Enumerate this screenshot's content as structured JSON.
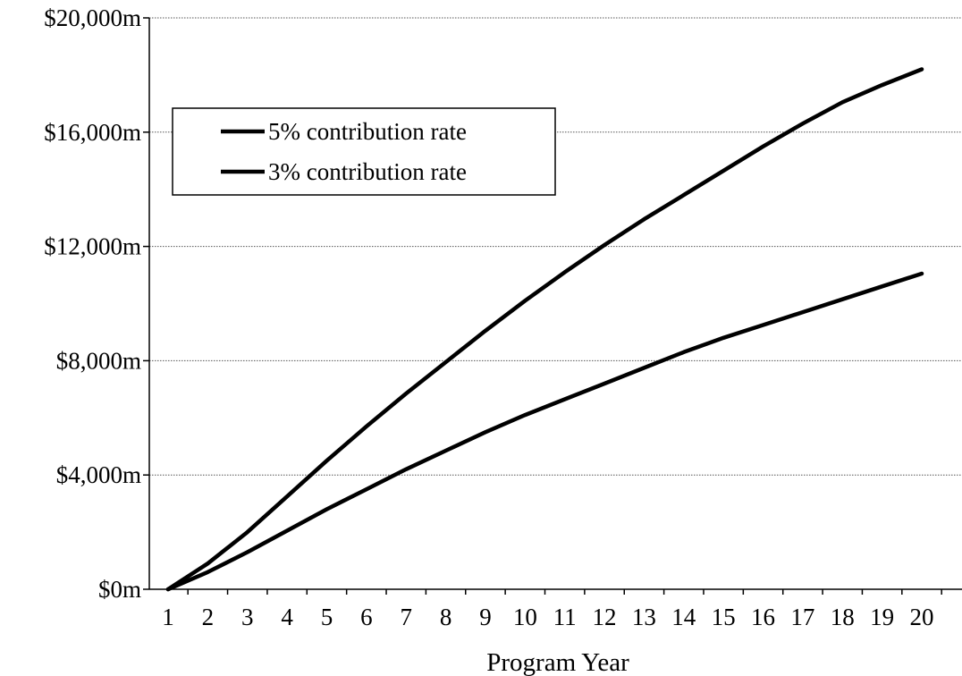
{
  "chart_data": {
    "type": "line",
    "title": "",
    "xlabel": "Program Year",
    "ylabel": "",
    "x": [
      1,
      2,
      3,
      4,
      5,
      6,
      7,
      8,
      9,
      10,
      11,
      12,
      13,
      14,
      15,
      16,
      17,
      18,
      19,
      20
    ],
    "y_ticks": [
      "$0m",
      "$4,000m",
      "$8,000m",
      "$12,000m",
      "$16,000m",
      "$20,000m"
    ],
    "y_tick_values": [
      0,
      4000,
      8000,
      12000,
      16000,
      20000
    ],
    "ylim": [
      0,
      20000
    ],
    "xlim": [
      1,
      20
    ],
    "grid": "horizontal dotted",
    "legend_placement": "top-left",
    "series": [
      {
        "name": "5% contribution rate",
        "values": [
          0,
          900,
          2000,
          3250,
          4500,
          5700,
          6850,
          7950,
          9050,
          10100,
          11100,
          12050,
          12950,
          13800,
          14650,
          15500,
          16300,
          17050,
          17650,
          18200
        ]
      },
      {
        "name": "3% contribution rate",
        "values": [
          0,
          600,
          1300,
          2050,
          2800,
          3500,
          4200,
          4850,
          5500,
          6100,
          6650,
          7200,
          7750,
          8300,
          8800,
          9250,
          9700,
          10150,
          10600,
          11050
        ]
      }
    ],
    "colors": {
      "line": "#000000",
      "grid": "#555555",
      "axis": "#000000"
    }
  }
}
